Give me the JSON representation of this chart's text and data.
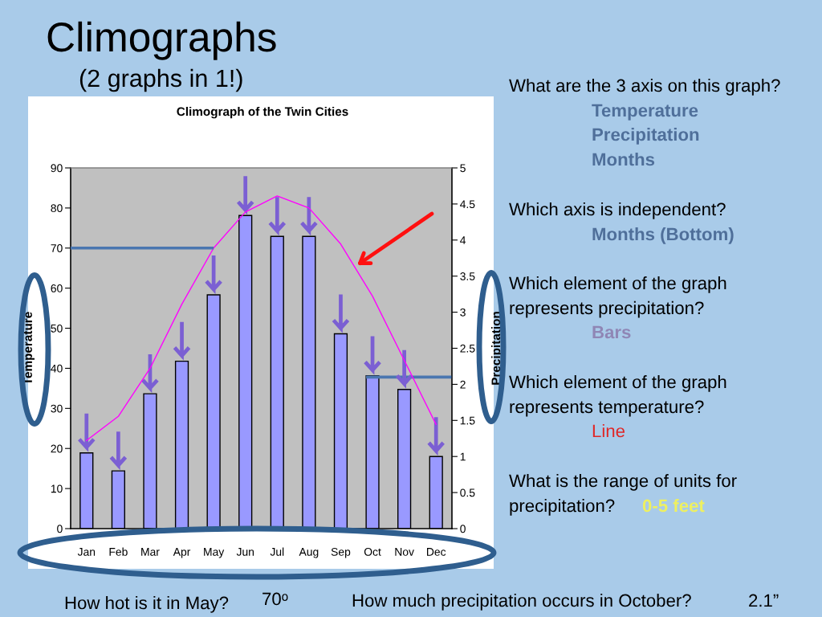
{
  "chart_data": {
    "type": "bar",
    "title": "Climographs",
    "subtitle": "(2 graphs in 1!)",
    "ylabel": "Temperature",
    "y2label": "Precipitation",
    "categories": [
      "Jan",
      "Feb",
      "Mar",
      "Apr",
      "May",
      "Jun",
      "Jul",
      "Aug",
      "Sep",
      "Oct",
      "Nov",
      "Dec"
    ],
    "series": [
      {
        "axis": "y2",
        "color": "#9999ff",
        "values": [
          1.05,
          0.8,
          1.87,
          2.32,
          3.24,
          4.34,
          4.05,
          4.05,
          2.7,
          2.12,
          1.93,
          1
        ]
      },
      {
        "type": "line",
        "color": "#ff00ff",
        "values": [
          22,
          28,
          40,
          56,
          70,
          79,
          83,
          80,
          71,
          58,
          42,
          26
        ]
      }
    ],
    "ylim": [
      0,
      90
    ],
    "yticks": [
      0,
      10,
      20,
      30,
      40,
      50,
      60,
      70,
      80,
      90
    ],
    "y2lim": [
      0,
      5
    ],
    "y2ticks": [
      0,
      0.5,
      1,
      1.5,
      2,
      2.5,
      3,
      3.5,
      4,
      4.5,
      5
    ],
    "ref_lines": [
      {
        "axis": "y",
        "value": 70,
        "color": "#4a76b0"
      },
      {
        "axis": "y2",
        "value": 2.1,
        "color": "#4a76b0"
      }
    ],
    "annotations": [
      "Climograph of the Twin Cities",
      "What are the 3 axis on this graph?",
      "Temperature",
      "Precipitation",
      "Months",
      "Which axis is independent?",
      "Months (Bottom)",
      "Which element of the graph\nrepresents precipitation?",
      "Bars",
      "Which element of the graph\nrepresents temperature?",
      "Line",
      "What is the range of units for",
      "precipitation?",
      "0-5 feet",
      "How hot is it in May?",
      "70ᵒ",
      "How much precipitation occurs in October?",
      "2.1”"
    ]
  }
}
